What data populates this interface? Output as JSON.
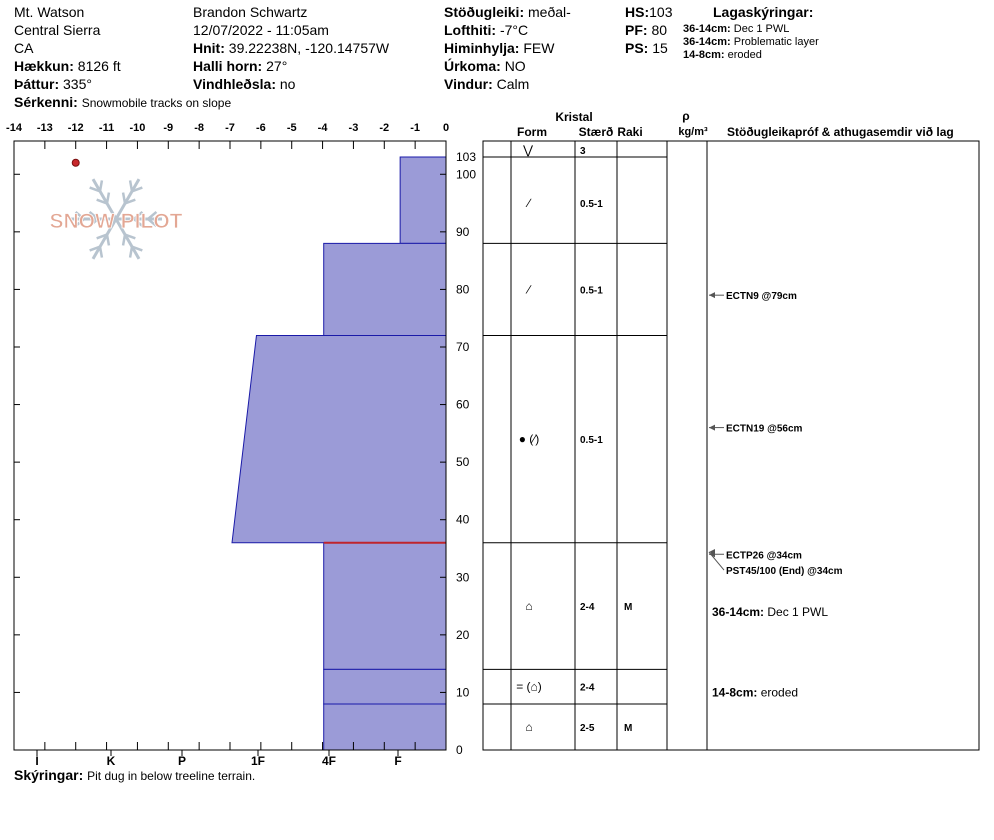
{
  "header": {
    "location": "Mt. Watson",
    "region": "Central Sierra",
    "state": "CA",
    "elevation_label": "Hækkun:",
    "elevation": "8126 ft",
    "aspect_label": "Þáttur:",
    "aspect": "335°",
    "features_label": "Sérkenni:",
    "features": "Snowmobile tracks on slope",
    "observer": "Brandon Schwartz",
    "datetime": "12/07/2022 - 11:05am",
    "coords_label": "Hnit:",
    "coords": "39.22238N, -120.14757W",
    "slope_label": "Halli horn:",
    "slope": "27°",
    "wind_loading_label": "Vindhleðsla:",
    "wind_loading": "no",
    "stability_label": "Stöðugleiki:",
    "stability": "meðal-",
    "air_temp_label": "Lofthiti:",
    "air_temp": "-7°C",
    "sky_label": "Himinhylja:",
    "sky": "FEW",
    "precip_label": "Úrkoma:",
    "precip": "NO",
    "wind_label": "Vindur:",
    "wind": "Calm",
    "hs_label": "HS:",
    "hs": "103",
    "pf_label": "PF:",
    "pf": "80",
    "ps_label": "PS:",
    "ps": "15",
    "legend_title": "Lagaskýringar:",
    "legend": [
      {
        "range": "36-14cm:",
        "text": "Dec 1 PWL"
      },
      {
        "range": "36-14cm:",
        "text": "Problematic layer"
      },
      {
        "range": "14-8cm:",
        "text": "eroded"
      }
    ],
    "notes_label": "Skýringar:",
    "notes": "Pit dug in below treeline terrain."
  },
  "logo": {
    "text": "SNOW PILOT"
  },
  "table_headers": {
    "crystal": "Kristal",
    "form": "Form",
    "size": "Stærð",
    "moisture": "Raki",
    "rho": "ρ",
    "density_unit": "kg/m³",
    "tests": "Stöðugleikapróf & athugasemdir við lag"
  },
  "colors": {
    "layer_fill": "#9b9bd7",
    "layer_line": "#1a1aa8",
    "problem_line": "#c0242c",
    "marker": "#c8282c",
    "logo_text": "#e3a794",
    "logo_flake": "#b8c4cf"
  },
  "chart_data": {
    "type": "snow_profile",
    "top_axis": {
      "ticks": [
        "-14",
        "-13",
        "-12",
        "-11",
        "-10",
        "-9",
        "-8",
        "-7",
        "-6",
        "-5",
        "-4",
        "-3",
        "-2",
        "-1",
        "0"
      ],
      "temp_range": [
        -14,
        0
      ]
    },
    "bottom_axis": {
      "hardness_ticks": [
        "I",
        "K",
        "P",
        "1F",
        "F",
        "4F",
        "F"
      ]
    },
    "height_axis": {
      "range": [
        0,
        103
      ],
      "ticks": [
        "0",
        "10",
        "20",
        "30",
        "40",
        "50",
        "60",
        "70",
        "80",
        "90",
        "100",
        "103"
      ]
    },
    "temperature_points": [
      {
        "depth": 102,
        "temp": -12
      }
    ],
    "layers": [
      {
        "top": 103,
        "bottom": 88,
        "hardness_top": 1.5,
        "hardness_bottom": 1.5,
        "form": "⋁",
        "size": "3",
        "moisture": ""
      },
      {
        "top": 88,
        "bottom": 72,
        "hardness_top": 4,
        "hardness_bottom": 4,
        "form": "∕",
        "size": "0.5-1",
        "moisture": ""
      },
      {
        "top": 72,
        "bottom": 36,
        "hardness_top": 6.2,
        "hardness_bottom": 7,
        "form": "∕",
        "size": "0.5-1",
        "moisture": ""
      },
      {
        "top": 36,
        "bottom": 14,
        "hardness_top": 4,
        "hardness_bottom": 4,
        "form": "● (∕)",
        "size": "0.5-1",
        "moisture": ""
      },
      {
        "top": 14,
        "bottom": 8,
        "hardness_top": 4,
        "hardness_bottom": 4,
        "form": "⌂",
        "size": "2-4",
        "moisture": "M"
      },
      {
        "top": 8,
        "bottom": 0,
        "hardness_top": 4,
        "hardness_bottom": 4,
        "form": "= (⌂)",
        "size": "2-4",
        "moisture": ""
      }
    ],
    "crystal_rows": [
      {
        "top": 103,
        "bottom": 88,
        "form": "⋁",
        "size": "3",
        "moisture": "",
        "label_at": 103
      },
      {
        "top": 88,
        "bottom": 72,
        "form": "∕",
        "size": "0.5-1",
        "moisture": "",
        "label_at": 95
      },
      {
        "top": 72,
        "bottom": 36,
        "form": "∕",
        "size": "0.5-1",
        "moisture": "",
        "label_at": 80
      },
      {
        "top": 36,
        "bottom": 14,
        "form": "● (∕)",
        "size": "0.5-1",
        "moisture": "",
        "label_at": 54
      },
      {
        "top": 14,
        "bottom": 8,
        "form": "⌂",
        "size": "2-4",
        "moisture": "M",
        "label_at": 25
      },
      {
        "top": 8,
        "bottom": 0,
        "form": "= (⌂)",
        "size": "2-4",
        "moisture": "",
        "label_at": 11
      }
    ],
    "crystal_rows_last": {
      "form": "⌂",
      "size": "2-5",
      "moisture": "M",
      "label_at": 4
    },
    "problem_layer_depth": 36,
    "tests": [
      {
        "depth": 79,
        "label": "ECTN9 @79cm"
      },
      {
        "depth": 56,
        "label": "ECTN19 @56cm"
      },
      {
        "depth": 34,
        "label": "ECTP26 @34cm"
      },
      {
        "depth": 33,
        "label": "PST45/100 (End) @34cm"
      }
    ],
    "layer_comments": [
      {
        "depth": 24,
        "range": "36-14cm:",
        "text": "Dec 1 PWL"
      },
      {
        "depth": 10,
        "range": "14-8cm:",
        "text": "eroded"
      }
    ]
  }
}
